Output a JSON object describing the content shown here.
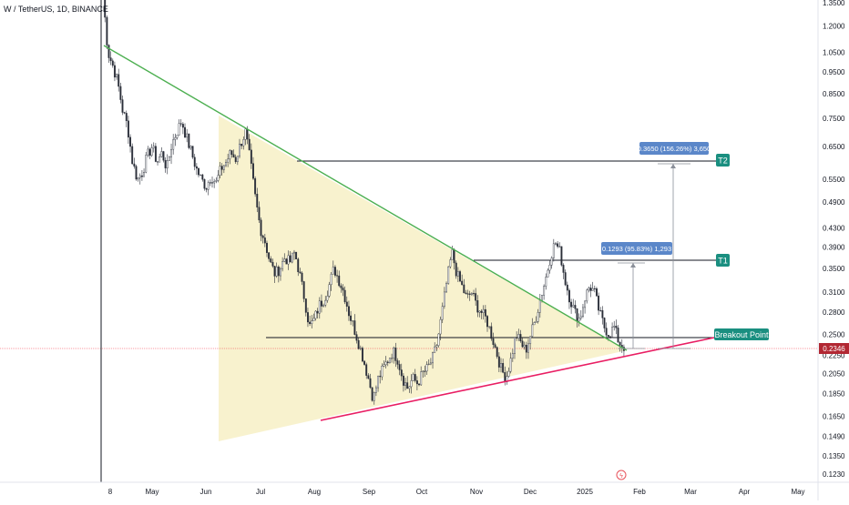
{
  "symbol": "W / TetherUS, 1D, BINANCE",
  "colors": {
    "up": "#089981",
    "down": "#f23645",
    "candle_body": "#2a2e39",
    "triangle_fill": "#f7f0c6",
    "upper_trendline": "#4caf50",
    "lower_trendline": "#e91e63",
    "level_line": "#131722",
    "marker_teal": "#1a8f80",
    "measure_box": "#5b87c9",
    "price_badge": "#b22833",
    "event_icon": "#e8525b"
  },
  "chart_data": {
    "type": "candlestick",
    "y_scale": "log",
    "y_ticks": [
      "1.3500",
      "1.2000",
      "1.0500",
      "0.9500",
      "0.8500",
      "0.7500",
      "0.6500",
      "0.5500",
      "0.4900",
      "0.4300",
      "0.3900",
      "0.3500",
      "0.3100",
      "0.2800",
      "0.2500",
      "0.2250",
      "0.2050",
      "0.1850",
      "0.1650",
      "0.1490",
      "0.1350",
      "0.1230"
    ],
    "x_ticks": [
      "8",
      "May",
      "Jun",
      "Jul",
      "Aug",
      "Sep",
      "Oct",
      "Nov",
      "Dec",
      "2025",
      "Feb",
      "Mar",
      "Apr",
      "May"
    ],
    "last_price": "0.2346",
    "annotations": {
      "t1_label": "T1",
      "t2_label": "T2",
      "breakout_label": "Breakout Point",
      "t1_measure": "0.1293 (95.83%) 1,293",
      "t2_measure": "0.3650 (156.26%) 3,650"
    },
    "levels": {
      "t1": 0.365,
      "t2": 0.6,
      "breakout": 0.238
    },
    "trendlines": {
      "upper": [
        [
          1.06,
          0.235
        ]
      ],
      "lower": [
        [
          0.165,
          0.245
        ]
      ]
    },
    "series_close": [
      1.4,
      1.05,
      0.98,
      0.9,
      0.78,
      0.72,
      0.6,
      0.55,
      0.57,
      0.62,
      0.65,
      0.6,
      0.63,
      0.58,
      0.66,
      0.7,
      0.74,
      0.68,
      0.63,
      0.58,
      0.55,
      0.53,
      0.56,
      0.54,
      0.58,
      0.6,
      0.63,
      0.61,
      0.66,
      0.7,
      0.6,
      0.5,
      0.43,
      0.4,
      0.36,
      0.34,
      0.35,
      0.37,
      0.36,
      0.38,
      0.34,
      0.3,
      0.26,
      0.27,
      0.29,
      0.3,
      0.32,
      0.35,
      0.33,
      0.31,
      0.28,
      0.26,
      0.24,
      0.22,
      0.2,
      0.18,
      0.2,
      0.21,
      0.22,
      0.23,
      0.22,
      0.2,
      0.19,
      0.2,
      0.195,
      0.205,
      0.21,
      0.22,
      0.24,
      0.28,
      0.33,
      0.38,
      0.34,
      0.32,
      0.3,
      0.31,
      0.29,
      0.28,
      0.27,
      0.25,
      0.23,
      0.21,
      0.2,
      0.22,
      0.25,
      0.24,
      0.23,
      0.25,
      0.27,
      0.3,
      0.33,
      0.37,
      0.4,
      0.38,
      0.33,
      0.3,
      0.28,
      0.27,
      0.3,
      0.32,
      0.31,
      0.28,
      0.26,
      0.25,
      0.26,
      0.24,
      0.235
    ]
  }
}
